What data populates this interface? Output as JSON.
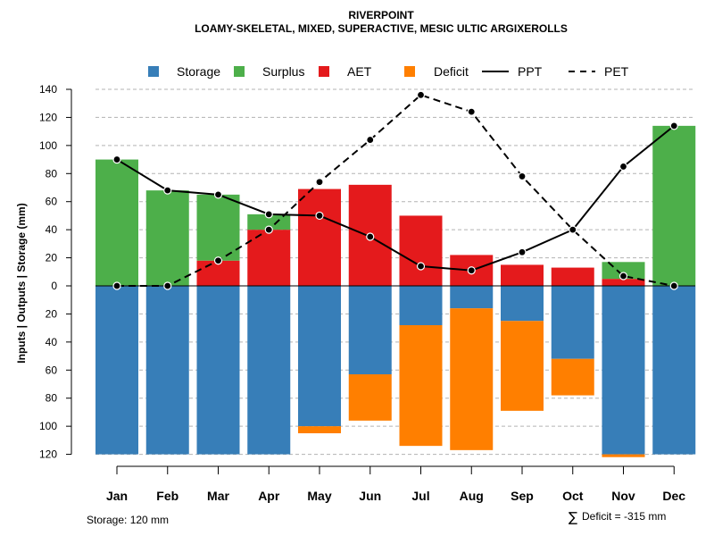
{
  "chart_data": {
    "type": "bar",
    "title": "RIVERPOINT",
    "subtitle": "LOAMY-SKELETAL, MIXED, SUPERACTIVE, MESIC ULTIC ARGIXEROLLS",
    "ylabel": "Inputs | Outputs | Storage    (mm)",
    "ylim": [
      -120,
      140
    ],
    "yticks": [
      140,
      120,
      100,
      80,
      60,
      40,
      20,
      0,
      -20,
      -40,
      -60,
      -80,
      -100,
      -120
    ],
    "ytick_labels": [
      "140",
      "120",
      "100",
      "80",
      "60",
      "40",
      "20",
      "0",
      "20",
      "40",
      "60",
      "80",
      "100",
      "120"
    ],
    "categories": [
      "Jan",
      "Feb",
      "Mar",
      "Apr",
      "May",
      "Jun",
      "Jul",
      "Aug",
      "Sep",
      "Oct",
      "Nov",
      "Dec"
    ],
    "legend": [
      {
        "label": "Storage",
        "kind": "box",
        "color": "#377EB8"
      },
      {
        "label": "Surplus",
        "kind": "box",
        "color": "#4DAF4A"
      },
      {
        "label": "AET",
        "kind": "box",
        "color": "#E41A1C"
      },
      {
        "label": "Deficit",
        "kind": "box",
        "color": "#FF7F00"
      },
      {
        "label": "PPT",
        "kind": "solid",
        "color": "#000000"
      },
      {
        "label": "PET",
        "kind": "dashed",
        "color": "#000000"
      }
    ],
    "series": [
      {
        "name": "Storage",
        "color": "#377EB8",
        "values": [
          -120,
          -120,
          -120,
          -120,
          -100,
          -63,
          -28,
          -16,
          -25,
          -52,
          -120,
          -120
        ]
      },
      {
        "name": "Deficit",
        "color": "#FF7F00",
        "values": [
          0,
          0,
          0,
          0,
          -5,
          -33,
          -86,
          -101,
          -64,
          -26,
          -2,
          0
        ]
      },
      {
        "name": "AET",
        "color": "#E41A1C",
        "values": [
          0,
          0,
          18,
          40,
          69,
          72,
          50,
          22,
          15,
          13,
          5,
          0
        ]
      },
      {
        "name": "Surplus",
        "color": "#4DAF4A",
        "values": [
          90,
          68,
          47,
          11,
          0,
          0,
          0,
          0,
          0,
          0,
          12,
          114
        ]
      },
      {
        "name": "PPT",
        "color": "#000000",
        "values": [
          90,
          68,
          65,
          51,
          50,
          35,
          14,
          11,
          24,
          40,
          85,
          114
        ]
      },
      {
        "name": "PET",
        "color": "#000000",
        "values": [
          0,
          0,
          18,
          40,
          74,
          104,
          136,
          124,
          78,
          40,
          7,
          0
        ]
      }
    ]
  },
  "footer": {
    "storage_note": "Storage: 120 mm",
    "deficit_symbol": "∑",
    "deficit_note": "Deficit = -315 mm"
  }
}
